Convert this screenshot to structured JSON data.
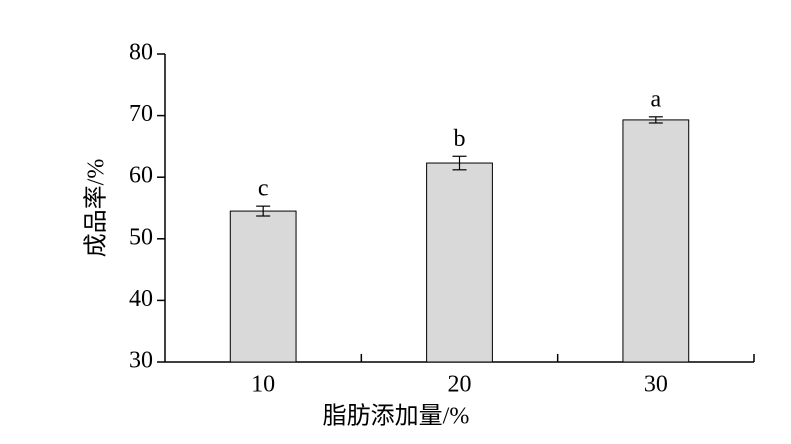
{
  "chart_data": {
    "type": "bar",
    "xlabel": "脂肪添加量/%",
    "ylabel": "成品率/%",
    "categories": [
      "10",
      "20",
      "30"
    ],
    "values": [
      54.5,
      62.3,
      69.3
    ],
    "errors": [
      0.8,
      1.1,
      0.5
    ],
    "significance_labels": [
      "c",
      "b",
      "a"
    ],
    "color": "#d9d9d9",
    "ylim": [
      30,
      80
    ],
    "yticks": [
      30,
      40,
      50,
      60,
      70,
      80
    ]
  }
}
